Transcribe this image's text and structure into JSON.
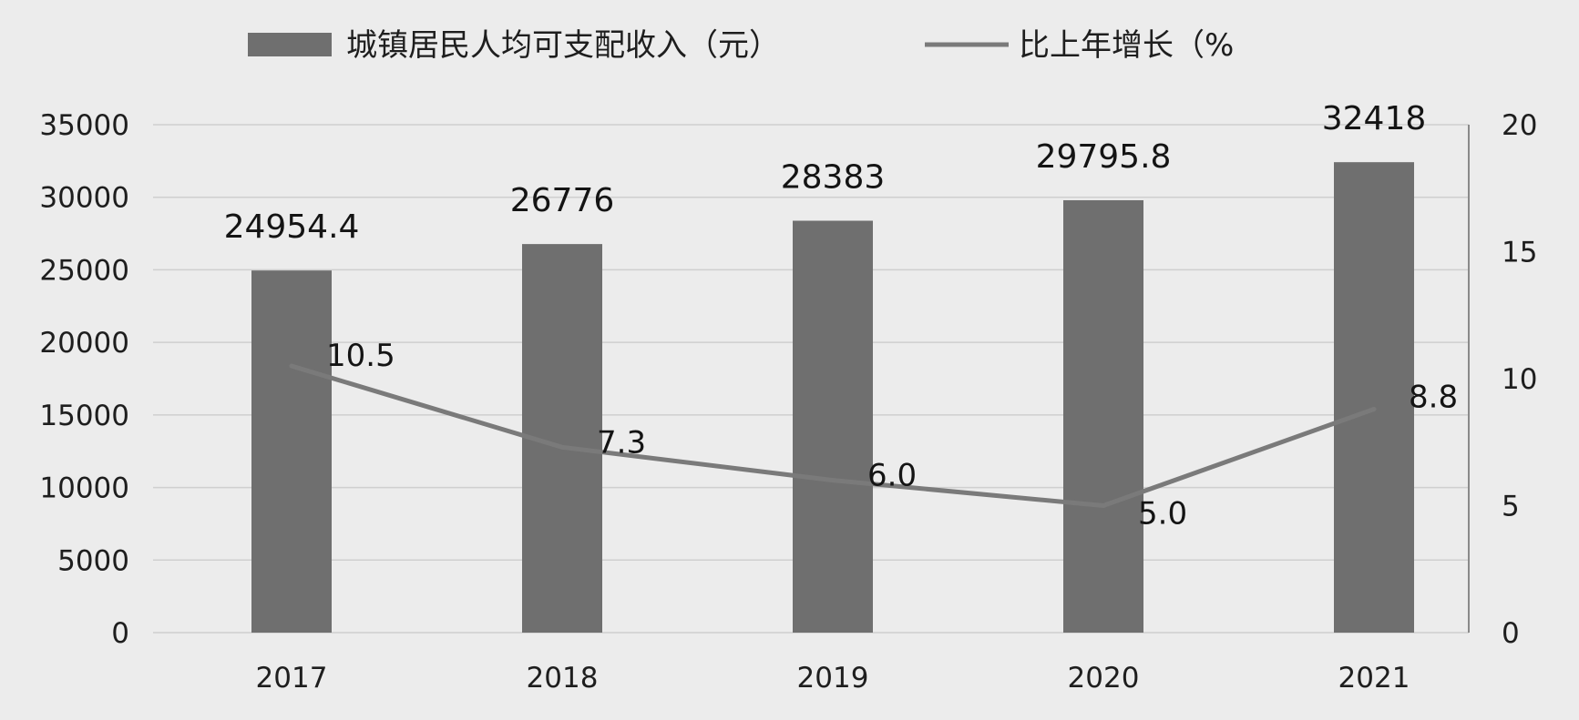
{
  "chart_data": {
    "type": "bar",
    "categories": [
      "2017",
      "2018",
      "2019",
      "2020",
      "2021"
    ],
    "series": [
      {
        "name": "城镇居民人均可支配收入（元）",
        "type": "bar",
        "axis": "left",
        "values": [
          24954.4,
          26776,
          28383,
          29795.8,
          32418
        ],
        "labels": [
          "24954.4",
          "26776",
          "28383",
          "29795.8",
          "32418"
        ],
        "color": "#6f6f6f"
      },
      {
        "name": "比上年增长（%",
        "type": "line",
        "axis": "right",
        "values": [
          10.5,
          7.3,
          6.0,
          5.0,
          8.8
        ],
        "labels": [
          "10.5",
          "7.3",
          "6.0",
          "5.0",
          "8.8"
        ],
        "color": "#7a7a7a"
      }
    ],
    "y_left": {
      "range": [
        0,
        35000
      ],
      "ticks": [
        "0",
        "5000",
        "10000",
        "15000",
        "20000",
        "25000",
        "30000",
        "35000"
      ]
    },
    "y_right": {
      "range": [
        0,
        20
      ],
      "ticks": [
        "0",
        "5",
        "10",
        "15",
        "20"
      ]
    },
    "grid": true,
    "legend_position": "top"
  }
}
